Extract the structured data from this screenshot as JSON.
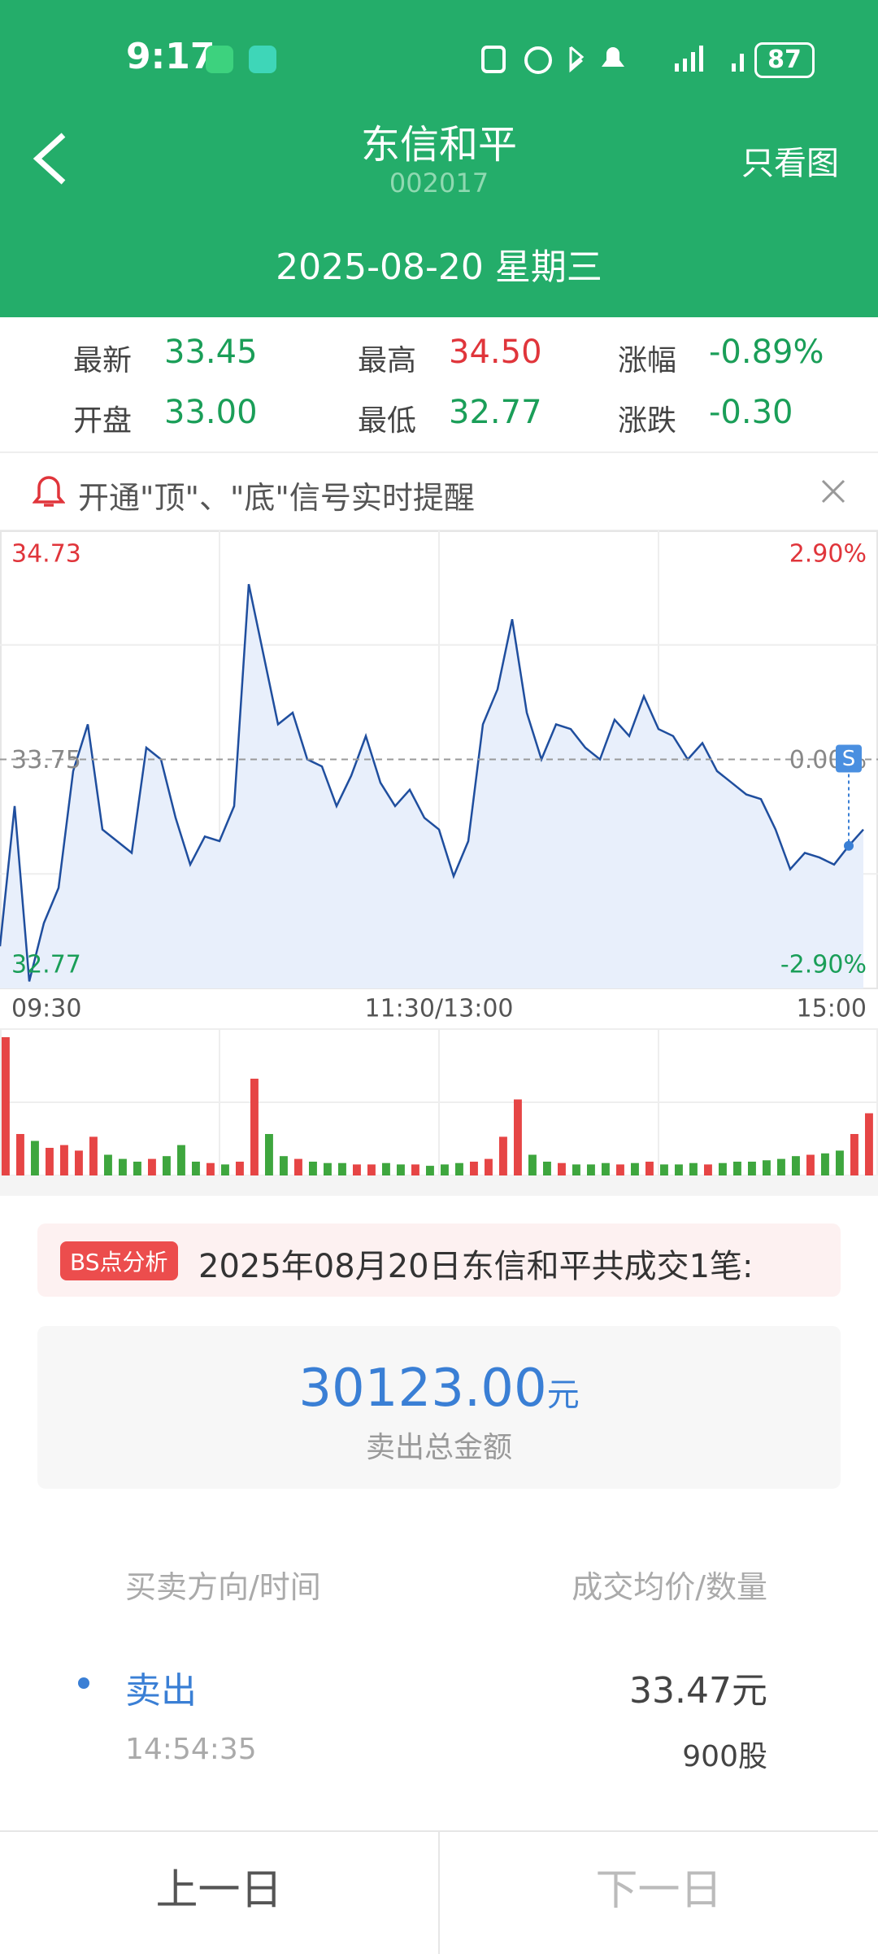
{
  "status_bar": {
    "time": "9:17",
    "battery": "87"
  },
  "header": {
    "title": "东信和平",
    "code": "002017",
    "action": "只看图",
    "date": "2025-08-20 星期三"
  },
  "quote": [
    {
      "label": "最新",
      "value": "33.45"
    },
    {
      "label": "最高",
      "value": "34.50"
    },
    {
      "label": "涨幅",
      "value": "-0.89%"
    },
    {
      "label": "开盘",
      "value": "33.00"
    },
    {
      "label": "最低",
      "value": "32.77"
    },
    {
      "label": "涨跌",
      "value": "-0.30"
    }
  ],
  "banner": {
    "text": "开通\"顶\"、\"底\"信号实时提醒"
  },
  "chart_data": [
    {
      "type": "line",
      "color": "#1f4e9e",
      "area_color": "#e8effb",
      "marker": "S",
      "xlim": [
        0,
        240
      ],
      "xticks": [
        {
          "value": 0,
          "label": "09:30"
        },
        {
          "value": 120,
          "label": "11:30/13:00"
        },
        {
          "value": 240,
          "label": "15:00"
        }
      ],
      "ylim": [
        32.77,
        34.73
      ],
      "yticks": [
        32.77,
        33.75,
        34.73
      ],
      "y2lim": [
        -2.9,
        2.9
      ],
      "y2ticks": [
        {
          "value": -2.9,
          "label": "-2.90%"
        },
        {
          "value": 0,
          "label": "0.00%"
        },
        {
          "value": 2.9,
          "label": "2.90%"
        }
      ],
      "x": [
        0,
        4,
        8,
        12,
        16,
        20,
        24,
        28,
        32,
        36,
        40,
        44,
        48,
        52,
        56,
        60,
        64,
        68,
        72,
        76,
        80,
        84,
        88,
        92,
        96,
        100,
        104,
        108,
        112,
        116,
        120,
        124,
        128,
        132,
        136,
        140,
        144,
        148,
        152,
        156,
        160,
        164,
        168,
        172,
        176,
        180,
        184,
        188,
        192,
        196,
        200,
        204,
        208,
        212,
        216,
        220,
        224,
        228,
        232,
        236
      ],
      "values": [
        32.95,
        33.55,
        32.8,
        33.05,
        33.2,
        33.7,
        33.9,
        33.45,
        33.4,
        33.35,
        33.8,
        33.75,
        33.5,
        33.3,
        33.42,
        33.4,
        33.55,
        34.5,
        34.2,
        33.9,
        33.95,
        33.75,
        33.72,
        33.55,
        33.68,
        33.85,
        33.65,
        33.55,
        33.62,
        33.5,
        33.45,
        33.25,
        33.4,
        33.9,
        34.05,
        34.35,
        33.95,
        33.75,
        33.9,
        33.88,
        33.8,
        33.75,
        33.92,
        33.85,
        34.02,
        33.88,
        33.85,
        33.75,
        33.82,
        33.7,
        33.65,
        33.6,
        33.58,
        33.45,
        33.28,
        33.35,
        33.33,
        33.3,
        33.38,
        33.45
      ]
    },
    {
      "type": "bar",
      "ylim": [
        0,
        100
      ],
      "values": [
        100,
        30,
        25,
        20,
        22,
        18,
        28,
        15,
        12,
        10,
        12,
        14,
        22,
        10,
        9,
        8,
        10,
        70,
        30,
        14,
        12,
        10,
        9,
        9,
        8,
        8,
        9,
        8,
        8,
        7,
        8,
        9,
        10,
        12,
        28,
        55,
        15,
        10,
        9,
        8,
        8,
        9,
        8,
        9,
        10,
        8,
        8,
        9,
        8,
        9,
        10,
        10,
        11,
        12,
        14,
        15,
        16,
        18,
        30,
        45
      ],
      "colors": [
        "#e64545",
        "#e64545",
        "#3ea63e",
        "#e64545",
        "#e64545",
        "#e64545",
        "#e64545",
        "#3ea63e",
        "#3ea63e",
        "#3ea63e",
        "#e64545",
        "#3ea63e",
        "#3ea63e",
        "#3ea63e",
        "#e64545",
        "#3ea63e",
        "#e64545",
        "#e64545",
        "#3ea63e",
        "#3ea63e",
        "#e64545",
        "#3ea63e",
        "#3ea63e",
        "#3ea63e",
        "#e64545",
        "#e64545",
        "#3ea63e",
        "#3ea63e",
        "#e64545",
        "#3ea63e",
        "#3ea63e",
        "#3ea63e",
        "#e64545",
        "#e64545",
        "#e64545",
        "#e64545",
        "#3ea63e",
        "#3ea63e",
        "#e64545",
        "#3ea63e",
        "#3ea63e",
        "#3ea63e",
        "#e64545",
        "#3ea63e",
        "#e64545",
        "#3ea63e",
        "#3ea63e",
        "#3ea63e",
        "#e64545",
        "#3ea63e",
        "#3ea63e",
        "#3ea63e",
        "#3ea63e",
        "#3ea63e",
        "#3ea63e",
        "#e64545",
        "#3ea63e",
        "#3ea63e",
        "#e64545",
        "#e64545"
      ]
    }
  ],
  "bs": {
    "tag": "BS点分析",
    "summary": "2025年08月20日东信和平共成交1笔:",
    "amount": "30123.00",
    "unit": "元",
    "amount_label": "卖出总金额"
  },
  "trades": {
    "headers": [
      "买卖方向/时间",
      "成交均价/数量"
    ],
    "rows": [
      {
        "direction": "卖出",
        "time": "14:54:35",
        "price": "33.47元",
        "quantity": "900股"
      }
    ]
  },
  "nav": {
    "prev": "上一日",
    "next": "下一日"
  }
}
